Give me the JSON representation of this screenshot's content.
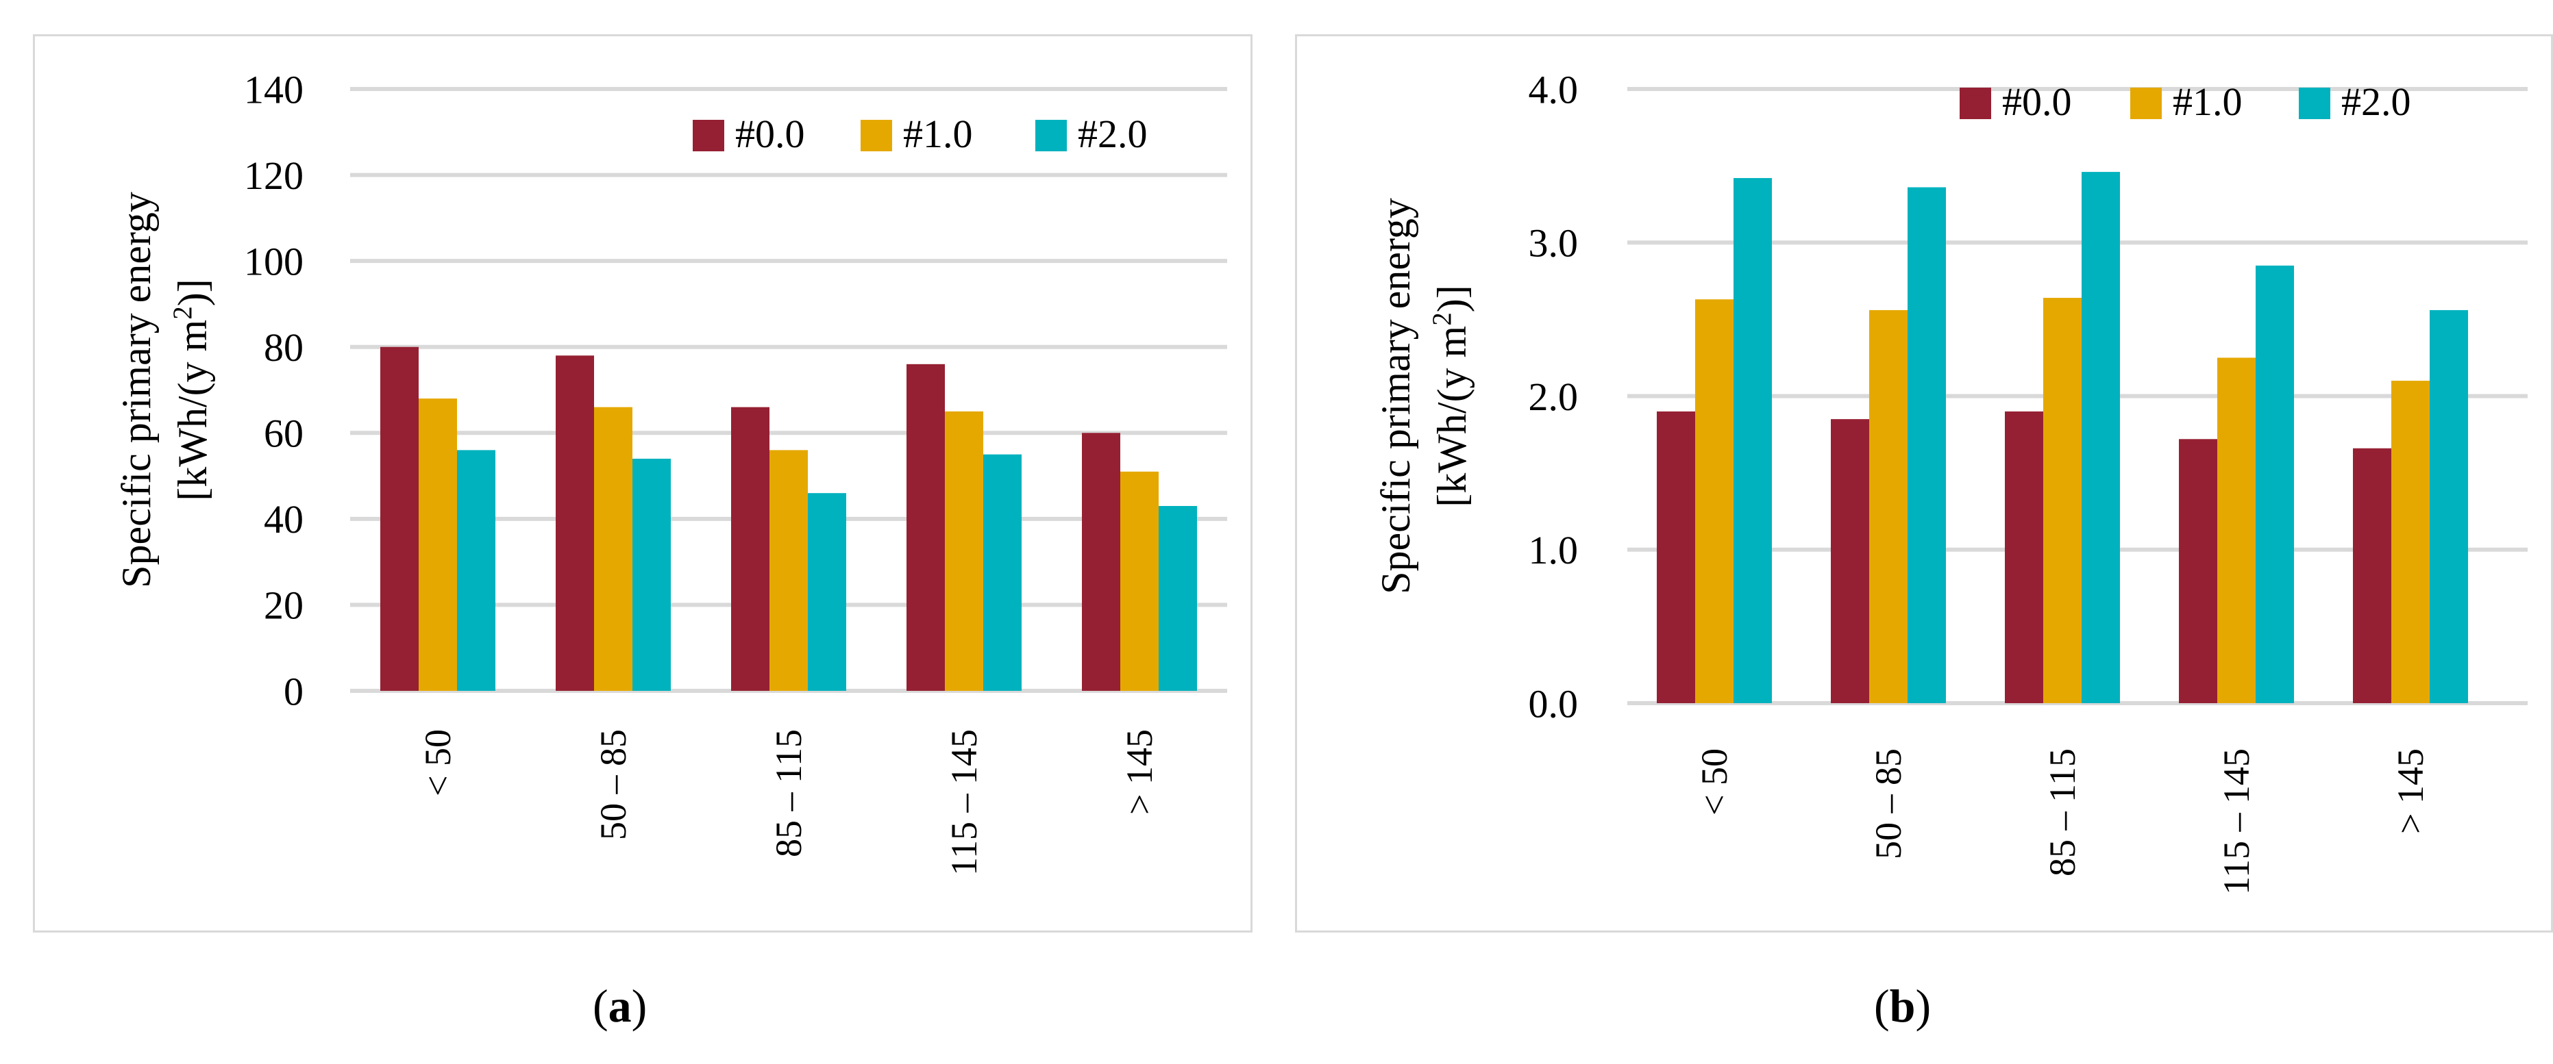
{
  "chart_data": [
    {
      "id": "a",
      "type": "bar",
      "categories": [
        "< 50",
        "50 – 85",
        "85 – 115",
        "115 – 145",
        "> 145"
      ],
      "series": [
        {
          "name": "#0.0",
          "color": "#962033",
          "values": [
            80,
            78,
            66,
            76,
            60
          ]
        },
        {
          "name": "#1.0",
          "color": "#e5a800",
          "values": [
            68,
            66,
            56,
            65,
            51
          ]
        },
        {
          "name": "#2.0",
          "color": "#00b2be",
          "values": [
            56,
            54,
            46,
            55,
            43
          ]
        }
      ],
      "ylabel": [
        "Specific primary energy",
        "[kWh/(y m",
        "2",
        ")]"
      ],
      "ylim": [
        0,
        140
      ],
      "yticks": [
        "0",
        "20",
        "40",
        "60",
        "80",
        "100",
        "120",
        "140"
      ],
      "ytick_values": [
        0,
        20,
        40,
        60,
        80,
        100,
        120,
        140
      ],
      "grid": true,
      "legend": "top-right"
    },
    {
      "id": "b",
      "type": "bar",
      "categories": [
        "< 50",
        "50 – 85",
        "85 – 115",
        "115 – 145",
        "> 145"
      ],
      "series": [
        {
          "name": "#0.0",
          "color": "#962033",
          "values": [
            1.9,
            1.85,
            1.9,
            1.72,
            1.66
          ]
        },
        {
          "name": "#1.0",
          "color": "#e5a800",
          "values": [
            2.63,
            2.56,
            2.64,
            2.25,
            2.1
          ]
        },
        {
          "name": "#2.0",
          "color": "#00b2be",
          "values": [
            3.42,
            3.36,
            3.46,
            2.85,
            2.56
          ]
        }
      ],
      "ylabel": [
        "Specific primary energy",
        "[kWh/(y m",
        "2",
        ")]"
      ],
      "ylim": [
        0,
        4
      ],
      "yticks": [
        "0.0",
        "1.0",
        "2.0",
        "3.0",
        "4.0"
      ],
      "ytick_values": [
        0,
        1,
        2,
        3,
        4
      ],
      "grid": true,
      "legend": "top-right"
    }
  ],
  "captions": {
    "a": {
      "open": "(",
      "label": "a",
      "close": ")"
    },
    "b": {
      "open": "(",
      "label": "b",
      "close": ")"
    }
  }
}
